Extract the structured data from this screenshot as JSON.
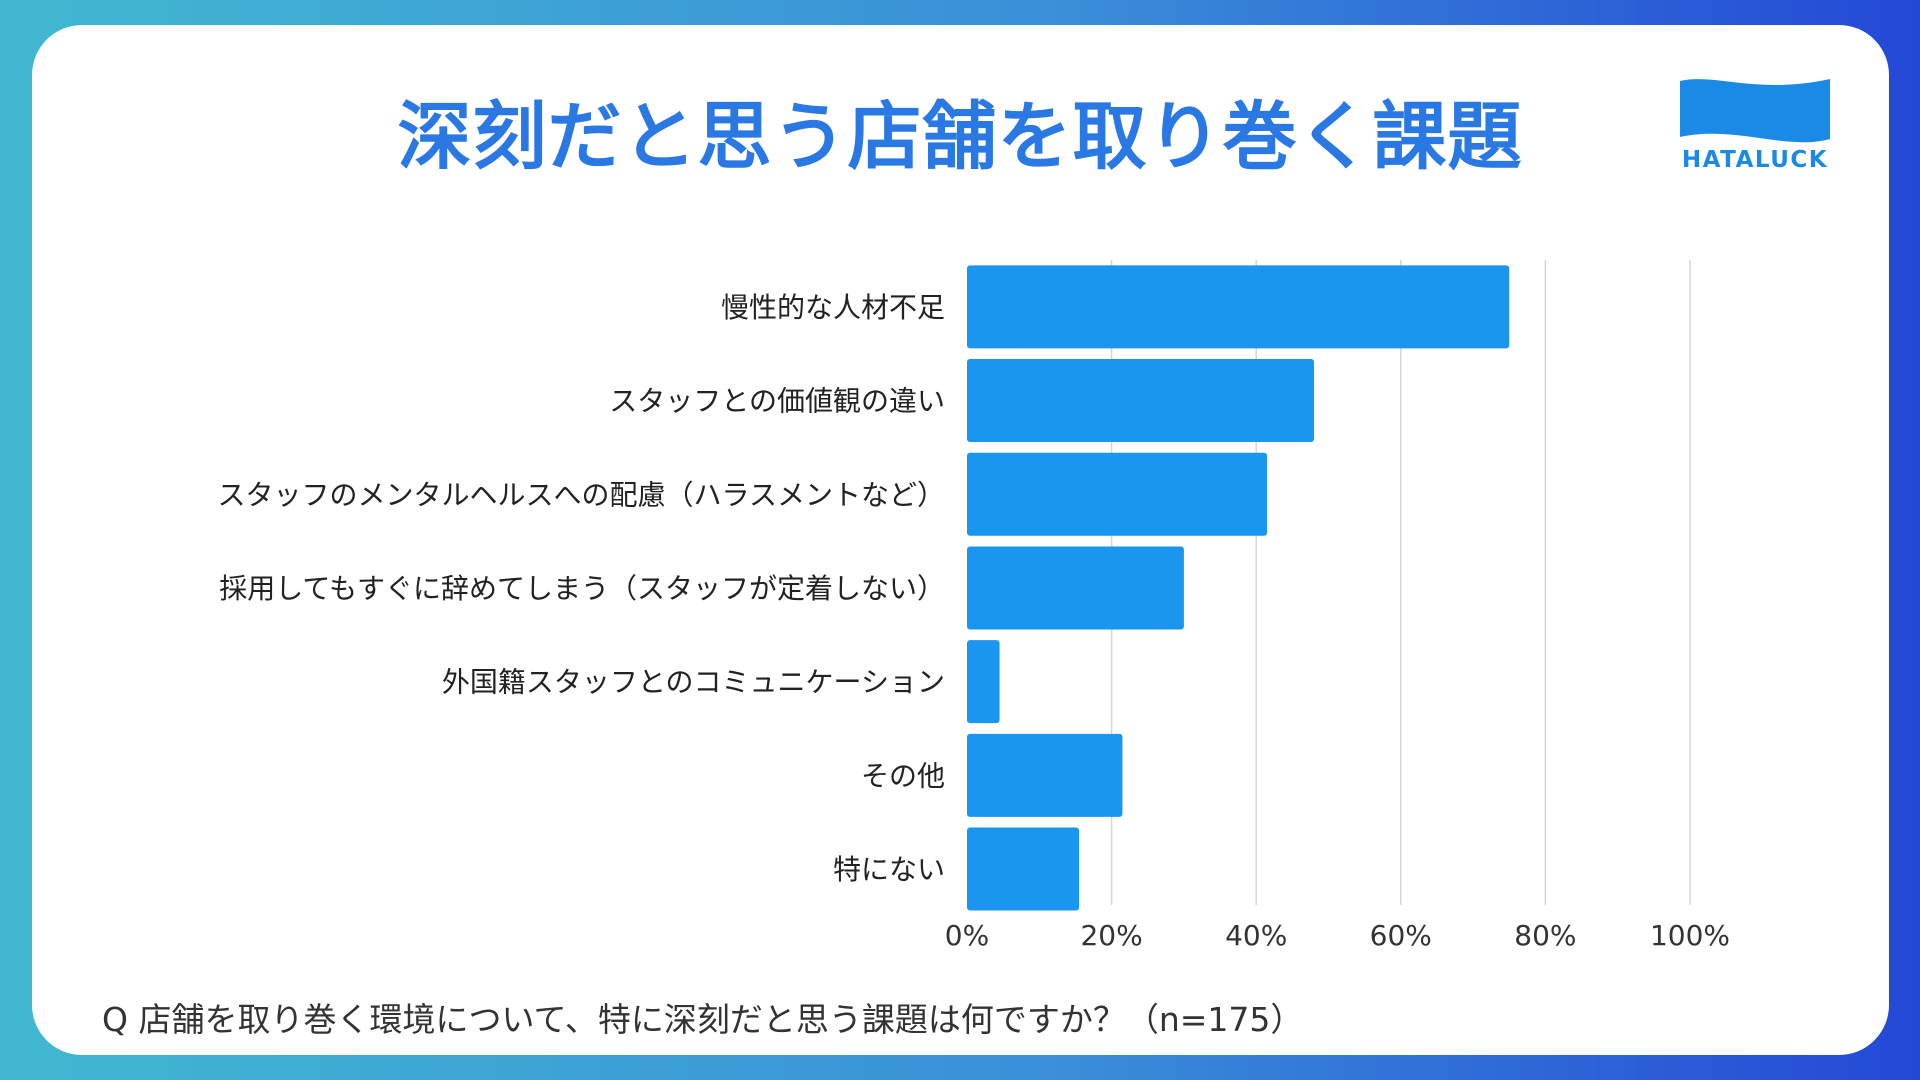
{
  "title": "深刻だと思う店舗を取り巻く課題",
  "logo": {
    "text": "HATALUCK",
    "icon": "flag-wave-logo"
  },
  "footnote": "Q 店舗を取り巻く環境について、特に深刻だと思う課題は何ですか？（n=175）",
  "colors": {
    "bar": "#1a96ef",
    "title": "#2a78e4",
    "grid": "#d6d6d6"
  },
  "chart_data": {
    "type": "bar",
    "orientation": "horizontal",
    "title": "深刻だと思う店舗を取り巻く課題",
    "categories": [
      "慢性的な人材不足",
      "スタッフとの価値観の違い",
      "スタッフのメンタルヘルスへの配慮（ハラスメントなど）",
      "採用してもすぐに辞めてしまう（スタッフが定着しない）",
      "外国籍スタッフとのコミュニケーション",
      "その他",
      "特にない"
    ],
    "values": [
      75,
      48,
      41.5,
      30,
      4.5,
      21.5,
      15.5
    ],
    "xlim": [
      0,
      100
    ],
    "xticks": [
      "0%",
      "20%",
      "40%",
      "60%",
      "80%",
      "100%"
    ],
    "grid": true,
    "legend": "none"
  }
}
